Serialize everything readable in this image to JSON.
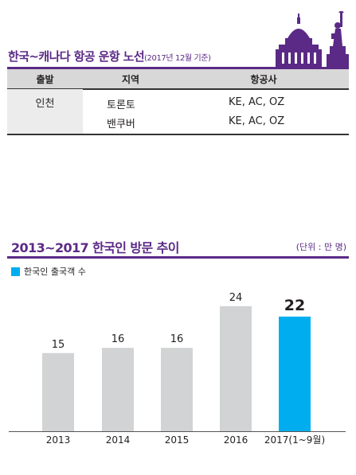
{
  "route": {
    "title": "한국~캐나다 항공 운항 노선",
    "subtitle": "(2017년 12월 기준)",
    "headers": [
      "출발",
      "지역",
      "항공사"
    ],
    "origin": "인천",
    "rows": [
      {
        "region": "토론토",
        "airlines": "KE, AC, OZ"
      },
      {
        "region": "밴쿠버",
        "airlines": "KE, AC, OZ"
      }
    ],
    "accent_color": "#5b2a86"
  },
  "chart": {
    "unit": "(단위 : 만 명)",
    "legend": "한국인 출국객 수"
  },
  "chart_data": {
    "type": "bar",
    "title": "2013~2017 한국인 방문 추이",
    "categories": [
      "2013",
      "2014",
      "2015",
      "2016",
      "2017(1~9월)"
    ],
    "series": [
      {
        "name": "한국인 출국객 수",
        "values": [
          15,
          16,
          16,
          24,
          22
        ]
      }
    ],
    "colors": [
      "#d1d3d4",
      "#d1d3d4",
      "#d1d3d4",
      "#d1d3d4",
      "#00aeef"
    ],
    "highlight_index": 4,
    "ylim": [
      0,
      32
    ],
    "grid": false,
    "legend_position": "top-left"
  }
}
